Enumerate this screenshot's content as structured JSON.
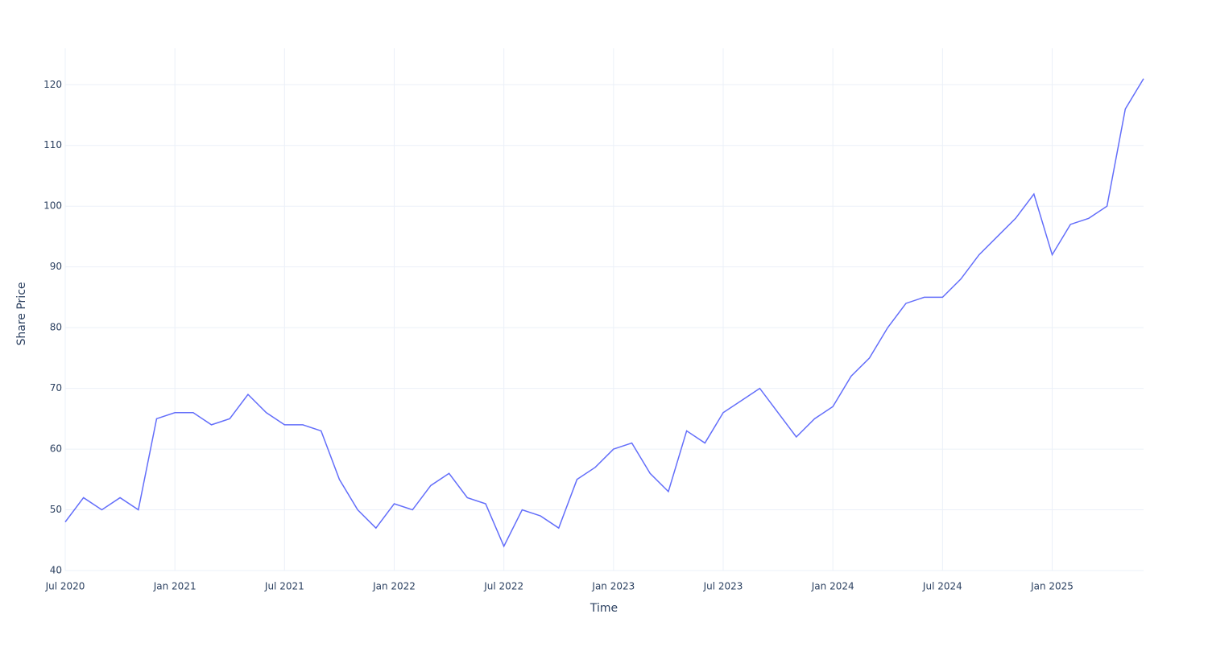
{
  "chart_data": {
    "type": "line",
    "x_title": "Time",
    "y_title": "Share Price",
    "x": [
      "2020-07",
      "2020-08",
      "2020-09",
      "2020-10",
      "2020-11",
      "2020-12",
      "2021-01",
      "2021-02",
      "2021-03",
      "2021-04",
      "2021-05",
      "2021-06",
      "2021-07",
      "2021-08",
      "2021-09",
      "2021-10",
      "2021-11",
      "2021-12",
      "2022-01",
      "2022-02",
      "2022-03",
      "2022-04",
      "2022-05",
      "2022-06",
      "2022-07",
      "2022-08",
      "2022-09",
      "2022-10",
      "2022-11",
      "2022-12",
      "2023-01",
      "2023-02",
      "2023-03",
      "2023-04",
      "2023-05",
      "2023-06",
      "2023-07",
      "2023-08",
      "2023-09",
      "2023-10",
      "2023-11",
      "2023-12",
      "2024-01",
      "2024-02",
      "2024-03",
      "2024-04",
      "2024-05",
      "2024-06",
      "2024-07",
      "2024-08",
      "2024-09",
      "2024-10",
      "2024-11",
      "2024-12",
      "2025-01",
      "2025-02",
      "2025-03",
      "2025-04",
      "2025-05",
      "2025-06"
    ],
    "values": [
      48,
      52,
      50,
      52,
      50,
      65,
      66,
      66,
      64,
      65,
      69,
      66,
      64,
      64,
      63,
      55,
      50,
      47,
      51,
      50,
      54,
      56,
      52,
      51,
      44,
      50,
      49,
      47,
      55,
      57,
      60,
      61,
      56,
      53,
      63,
      61,
      66,
      68,
      70,
      66,
      62,
      65,
      67,
      72,
      75,
      80,
      84,
      85,
      85,
      88,
      92,
      95,
      98,
      102,
      92,
      97,
      98,
      100,
      116,
      121
    ],
    "color": "#636efa",
    "xlim": [
      "2020-07",
      "2025-06"
    ],
    "xticks": [
      {
        "value": "2020-07",
        "label": "Jul 2020"
      },
      {
        "value": "2021-01",
        "label": "Jan 2021"
      },
      {
        "value": "2021-07",
        "label": "Jul 2021"
      },
      {
        "value": "2022-01",
        "label": "Jan 2022"
      },
      {
        "value": "2022-07",
        "label": "Jul 2022"
      },
      {
        "value": "2023-01",
        "label": "Jan 2023"
      },
      {
        "value": "2023-07",
        "label": "Jul 2023"
      },
      {
        "value": "2024-01",
        "label": "Jan 2024"
      },
      {
        "value": "2024-07",
        "label": "Jul 2024"
      },
      {
        "value": "2025-01",
        "label": "Jan 2025"
      }
    ],
    "ylim": [
      40,
      126
    ],
    "yticks": [
      40,
      50,
      60,
      70,
      80,
      90,
      100,
      110,
      120
    ],
    "grid": true
  }
}
